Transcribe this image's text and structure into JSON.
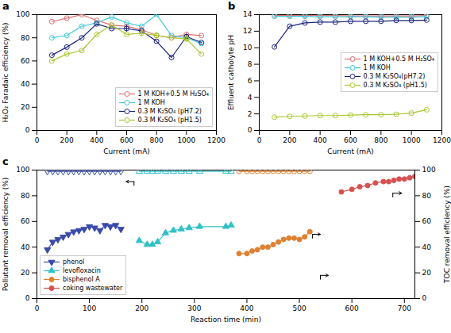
{
  "chart_data": [
    {
      "type": "line",
      "title": "a",
      "xlabel": "Current (mA)",
      "ylabel": "H₂O₂ Faradaic efficiency (%)",
      "x": [
        100,
        200,
        300,
        400,
        500,
        600,
        700,
        800,
        900,
        1000,
        1100
      ],
      "xlim": [
        0,
        1200
      ],
      "ylim": [
        0,
        100
      ],
      "xticks": [
        0,
        200,
        400,
        600,
        800,
        1000,
        1200
      ],
      "yticks": [
        0,
        20,
        40,
        60,
        80,
        100
      ],
      "grid": false,
      "legend": "lower right",
      "series": [
        {
          "name": "1 M KOH+0.5 M H₂SO₄",
          "color": "#e07070",
          "marker": "circle_open",
          "values": [
            94,
            97,
            100,
            95,
            91,
            90,
            87,
            82,
            80,
            83,
            82
          ],
          "yerr": [
            0,
            0,
            0,
            0,
            0,
            0,
            0,
            0,
            0,
            0,
            0
          ]
        },
        {
          "name": "1 M KOH",
          "color": "#40c8d8",
          "marker": "circle_open",
          "values": [
            80,
            82,
            90,
            93,
            98,
            93,
            90,
            100,
            82,
            80,
            75
          ],
          "yerr": [
            0,
            0,
            0,
            0,
            0,
            0,
            0,
            0,
            0,
            0,
            0
          ]
        },
        {
          "name": "0.3 M K₂SO₄ (pH7.2)",
          "color": "#1a237e",
          "marker": "circle_open",
          "values": [
            65,
            72,
            80,
            92,
            88,
            88,
            86,
            77,
            63,
            81,
            76
          ],
          "yerr": [
            0,
            0,
            0,
            0,
            0,
            3,
            0,
            0,
            0,
            3,
            0
          ]
        },
        {
          "name": "0.3 M K₂SO₄ (pH1.5)",
          "color": "#a8c830",
          "marker": "circle_open",
          "values": [
            60,
            66,
            69,
            83,
            91,
            83,
            84,
            82,
            80,
            79,
            66
          ],
          "yerr": [
            0,
            0,
            0,
            0,
            0,
            0,
            3,
            3,
            0,
            3,
            0
          ]
        }
      ]
    },
    {
      "type": "line",
      "title": "b",
      "xlabel": "Current (mA)",
      "ylabel": "Effluent catholyte pH",
      "x": [
        100,
        200,
        300,
        400,
        500,
        600,
        700,
        800,
        900,
        1000,
        1100
      ],
      "xlim": [
        0,
        1200
      ],
      "ylim": [
        0,
        14
      ],
      "xticks": [
        0,
        200,
        400,
        600,
        800,
        1000,
        1200
      ],
      "yticks": [
        0,
        2,
        4,
        6,
        8,
        10,
        12,
        14
      ],
      "grid": false,
      "legend": "center right",
      "series": [
        {
          "name": "1 M KOH+0.5 M H₂SO₄",
          "color": "#e07070",
          "marker": "circle_open",
          "values": [
            13.9,
            13.9,
            13.9,
            13.9,
            13.9,
            13.85,
            13.85,
            13.85,
            13.85,
            13.85,
            13.9
          ]
        },
        {
          "name": "1 M KOH",
          "color": "#40c8d8",
          "marker": "circle_open",
          "values": [
            13.8,
            13.8,
            13.8,
            13.75,
            13.75,
            13.75,
            13.75,
            13.7,
            13.7,
            13.7,
            13.75
          ]
        },
        {
          "name": "0.3 M K₂SO₄(pH7.2)",
          "color": "#1a237e",
          "marker": "circle_open",
          "values": [
            10.1,
            12.6,
            13.0,
            13.1,
            13.1,
            13.2,
            13.2,
            13.2,
            13.3,
            13.3,
            13.35
          ]
        },
        {
          "name": "0.3 M K₂SO₄ (pH1.5)",
          "color": "#a8c830",
          "marker": "circle_open",
          "values": [
            1.6,
            1.7,
            1.75,
            1.8,
            1.8,
            1.85,
            1.9,
            1.9,
            1.95,
            2.1,
            2.5
          ]
        }
      ]
    },
    {
      "type": "line",
      "title": "c",
      "xlabel": "Reaction time (min)",
      "ylabel": "Pollutant removal efficiency (%)",
      "y2label": "TOC removal efficiency (%)",
      "xlim": [
        0,
        720
      ],
      "ylim": [
        0,
        100
      ],
      "y2lim": [
        0,
        100
      ],
      "xticks": [
        0,
        100,
        200,
        300,
        400,
        500,
        600,
        700
      ],
      "yticks": [
        0,
        20,
        40,
        60,
        80,
        100
      ],
      "y2ticks": [
        0,
        20,
        40,
        60,
        80,
        100
      ],
      "grid": false,
      "legend": "lower left",
      "series": [
        {
          "name": "phenol",
          "color": "#3a4baa",
          "marker": "triangle_down",
          "x": [
            20,
            30,
            40,
            50,
            60,
            70,
            80,
            90,
            100,
            110,
            120,
            130,
            140,
            150,
            160
          ],
          "values": [
            38,
            44,
            46,
            48,
            50,
            52,
            53,
            54,
            56,
            55,
            53,
            57,
            56,
            57,
            54
          ]
        },
        {
          "name": "levofloxacin",
          "color": "#30c0c8",
          "marker": "triangle_up",
          "x": [
            195,
            210,
            220,
            230,
            245,
            260,
            275,
            290,
            310,
            360,
            370
          ],
          "values": [
            45,
            42,
            42,
            44,
            51,
            53,
            54,
            55,
            56,
            56,
            57
          ]
        },
        {
          "name": "bisphenol A",
          "color": "#e08030",
          "marker": "circle",
          "x": [
            385,
            400,
            410,
            420,
            430,
            440,
            450,
            460,
            470,
            480,
            490,
            500,
            510,
            520
          ],
          "values": [
            35,
            35,
            37,
            38,
            40,
            40,
            42,
            44,
            46,
            47,
            47,
            46,
            48,
            52
          ]
        },
        {
          "name": "coking wastewater",
          "color": "#d85050",
          "marker": "circle",
          "axis": "y2",
          "x": [
            580,
            600,
            615,
            630,
            645,
            660,
            670,
            680,
            690,
            700,
            710,
            720
          ],
          "values": [
            83,
            85,
            87,
            88,
            90,
            91,
            91,
            92,
            93,
            93,
            94,
            95
          ]
        },
        {
          "color": "#3a4baa",
          "marker": "triangle_down_open",
          "x": [
            20,
            30,
            40,
            50,
            60,
            70,
            80,
            90,
            100,
            110,
            120,
            130,
            140,
            150,
            160
          ],
          "values": [
            99,
            99,
            99,
            99,
            99,
            99,
            99,
            99,
            99,
            99,
            99,
            99,
            99,
            99,
            99
          ]
        },
        {
          "color": "#30c0c8",
          "marker": "triangle_up_open",
          "x": [
            195,
            210,
            220,
            230,
            245,
            260,
            275,
            290,
            310,
            360,
            370
          ],
          "values": [
            99,
            99,
            99,
            99,
            99,
            99,
            99,
            99,
            99,
            99,
            99
          ]
        },
        {
          "color": "#e08030",
          "marker": "circle_open",
          "x": [
            385,
            400,
            410,
            420,
            430,
            440,
            450,
            460,
            470,
            480,
            490,
            500,
            510,
            520
          ],
          "values": [
            99,
            99,
            99,
            99,
            99,
            99,
            99,
            99,
            99,
            99,
            99,
            99,
            99,
            99
          ]
        }
      ],
      "annotations": [
        {
          "type": "arrow",
          "x": [
            185,
            185,
            170
          ],
          "y": [
            88,
            91,
            91
          ]
        },
        {
          "type": "arrow",
          "x": [
            525,
            525,
            540
          ],
          "y": [
            47,
            50,
            50
          ]
        },
        {
          "type": "arrow",
          "axis": "y2",
          "x": [
            678,
            678,
            695
          ],
          "y": [
            79,
            82,
            82
          ]
        },
        {
          "type": "arrow",
          "x": [
            540,
            540,
            555
          ],
          "y": [
            15,
            18,
            18
          ]
        }
      ]
    }
  ]
}
